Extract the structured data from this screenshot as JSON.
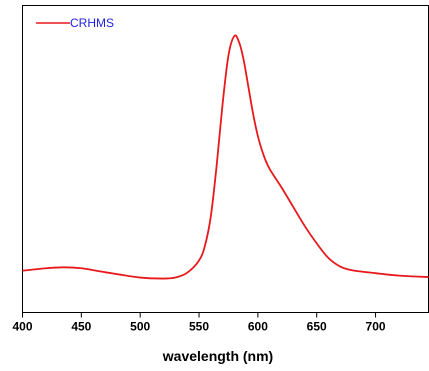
{
  "chart_data": {
    "type": "line",
    "title": "",
    "xlabel": "wavelength (nm)",
    "ylabel": "",
    "xlim": [
      400,
      745
    ],
    "ylim": [
      0,
      1
    ],
    "x_ticks": [
      400,
      450,
      500,
      550,
      600,
      650,
      700
    ],
    "grid": false,
    "legend": {
      "placement": "top-left",
      "entries": [
        "CRHMS"
      ]
    },
    "series": [
      {
        "name": "CRHMS",
        "color": "#e8191c",
        "x": [
          400,
          420,
          435,
          450,
          470,
          500,
          520,
          530,
          540,
          550,
          555,
          560,
          565,
          570,
          575,
          580,
          584,
          588,
          592,
          596,
          600,
          605,
          610,
          620,
          630,
          640,
          650,
          660,
          670,
          680,
          700,
          720,
          745
        ],
        "y": [
          0.038,
          0.048,
          0.052,
          0.048,
          0.032,
          0.01,
          0.006,
          0.01,
          0.03,
          0.08,
          0.14,
          0.26,
          0.47,
          0.72,
          0.92,
          1.0,
          0.975,
          0.9,
          0.79,
          0.68,
          0.59,
          0.51,
          0.455,
          0.38,
          0.3,
          0.22,
          0.15,
          0.09,
          0.055,
          0.04,
          0.028,
          0.018,
          0.012
        ]
      }
    ]
  }
}
